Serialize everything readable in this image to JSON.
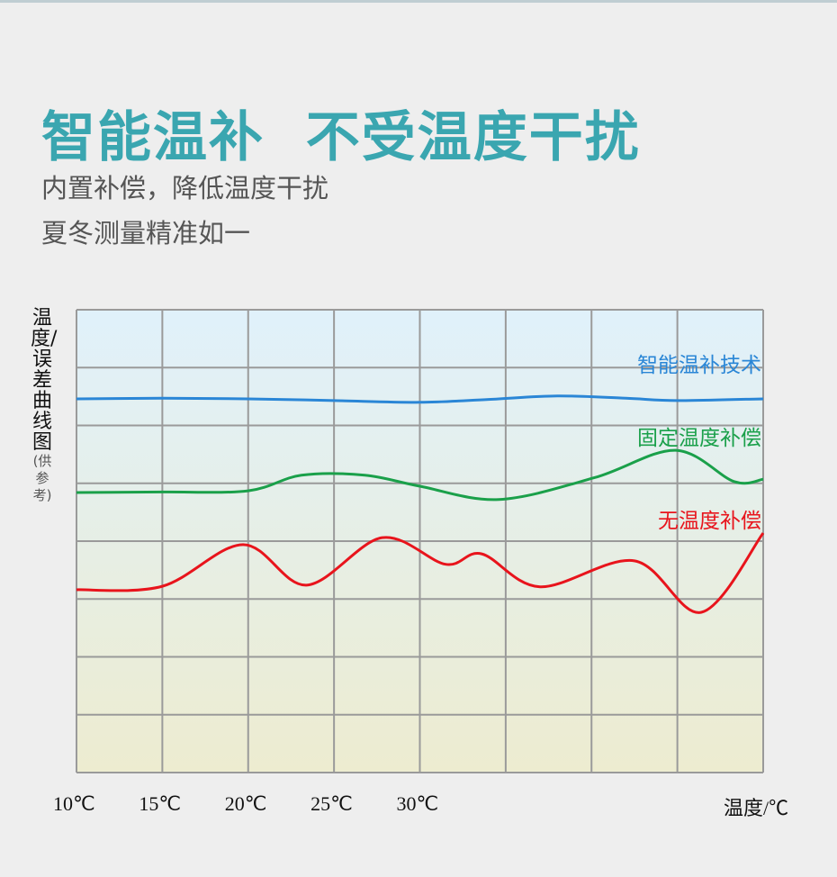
{
  "header": {
    "title": "智能温补  不受温度干扰",
    "subtitle_lines": [
      "内置补偿，降低温度干扰",
      "夏冬测量精准如一"
    ]
  },
  "chart_data": {
    "type": "line",
    "ylabel": "温度/误差曲线图",
    "ylabel_note": "(供参考)",
    "xlabel": "温度/℃",
    "x_tick_labels": [
      "10℃",
      "15℃",
      "20℃",
      "25℃",
      "30℃"
    ],
    "x_ticks": [
      10,
      15,
      20,
      25,
      30
    ],
    "xlim": [
      10,
      50
    ],
    "ylim": [
      0,
      8
    ],
    "grid": true,
    "y_tick_labels": [],
    "legend_placement": "inline-right",
    "series": [
      {
        "name": "智能温补技术",
        "color": "#2a86d6",
        "points": [
          [
            10,
            6.46
          ],
          [
            15,
            6.47
          ],
          [
            20,
            6.46
          ],
          [
            25,
            6.43
          ],
          [
            30,
            6.4
          ],
          [
            34,
            6.45
          ],
          [
            38,
            6.51
          ],
          [
            42,
            6.47
          ],
          [
            45,
            6.43
          ],
          [
            50,
            6.46
          ]
        ]
      },
      {
        "name": "固定温度补偿",
        "color": "#1aa04a",
        "points": [
          [
            10,
            4.84
          ],
          [
            15,
            4.85
          ],
          [
            20,
            4.87
          ],
          [
            23.1,
            5.14
          ],
          [
            26.8,
            5.14
          ],
          [
            30,
            4.95
          ],
          [
            34.6,
            4.72
          ],
          [
            40.2,
            5.1
          ],
          [
            44.9,
            5.57
          ],
          [
            48.3,
            5.03
          ],
          [
            50,
            5.07
          ]
        ]
      },
      {
        "name": "无温度补偿",
        "color": "#e8141c",
        "points": [
          [
            10,
            3.16
          ],
          [
            15,
            3.22
          ],
          [
            19.7,
            3.94
          ],
          [
            23.4,
            3.24
          ],
          [
            27.8,
            4.06
          ],
          [
            31.5,
            3.6
          ],
          [
            33.6,
            3.78
          ],
          [
            37,
            3.21
          ],
          [
            42.5,
            3.66
          ],
          [
            46.4,
            2.77
          ],
          [
            50,
            4.14
          ]
        ]
      }
    ]
  },
  "colors": {
    "title": "#3aa6b0",
    "grid": "#9a9a9a",
    "bg_top": "#e0f1fb",
    "bg_bottom": "#edecd0"
  }
}
